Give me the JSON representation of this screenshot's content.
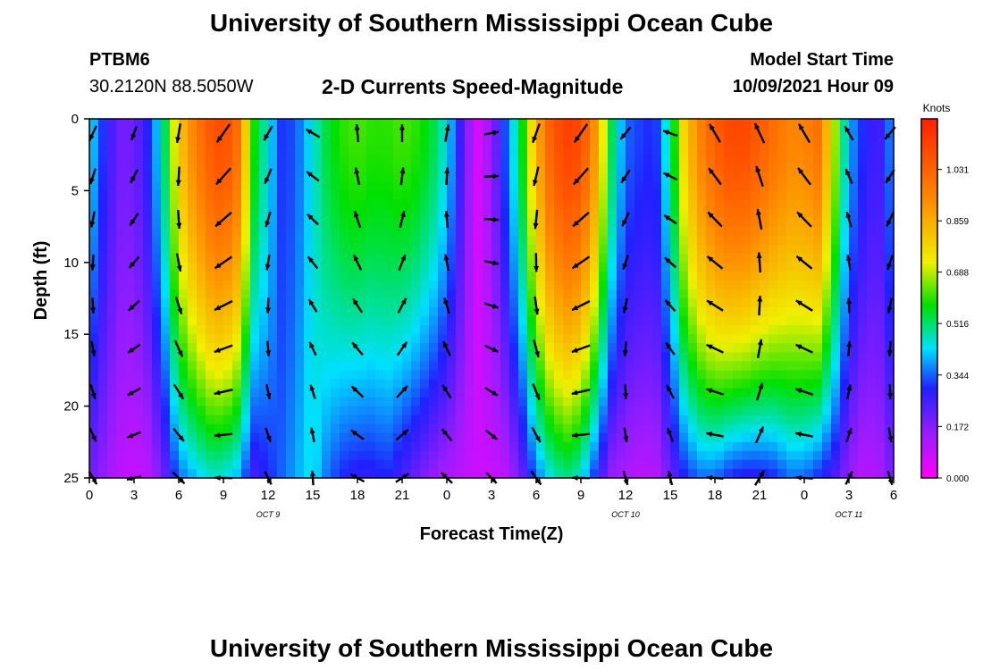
{
  "header": {
    "title": "University of Southern Mississippi Ocean Cube",
    "station_id": "PTBM6",
    "coordinates": "30.2120N  88.5050W",
    "subtitle": "2-D Currents Speed-Magnitude",
    "model_start_label": "Model Start Time",
    "model_start_value": "10/09/2021 Hour 09"
  },
  "footer": {
    "title": "University of Southern Mississippi Ocean Cube"
  },
  "chart_data": {
    "type": "heatmap",
    "title": "2-D Currents Speed-Magnitude",
    "xlabel": "Forecast Time(Z)",
    "ylabel": "Depth (ft)",
    "x_ticks": [
      "0",
      "3",
      "6",
      "9",
      "12",
      "15",
      "18",
      "21",
      "0",
      "3",
      "6",
      "9",
      "12",
      "15",
      "18",
      "21",
      "0",
      "3",
      "6"
    ],
    "x_range_hours": [
      0,
      54
    ],
    "date_labels": [
      {
        "text": "OCT 9",
        "hour": 12
      },
      {
        "text": "OCT 10",
        "hour": 36
      },
      {
        "text": "OCT 11",
        "hour": 51
      }
    ],
    "y_ticks": [
      "0",
      "5",
      "10",
      "15",
      "20",
      "25"
    ],
    "y_range_ft": [
      0,
      25
    ],
    "colorbar": {
      "unit": "Knots",
      "min": 0,
      "max": 1.2,
      "ticks": [
        "0.000",
        "0.172",
        "0.344",
        "0.516",
        "0.688",
        "0.859",
        "1.031"
      ]
    },
    "colors": {
      "magenta": "#ff00ff",
      "purple": "#9c1cff",
      "blue": "#2020ff",
      "cyan": "#00e0ff",
      "green": "#00e000",
      "yellow": "#f0f000",
      "orange": "#ff8800",
      "red": "#ff2000"
    },
    "speed_profile": {
      "hours": [
        0,
        1,
        2,
        3,
        4,
        5,
        6,
        7,
        8,
        9,
        10,
        11,
        12,
        13,
        14,
        15,
        16,
        17,
        18,
        19,
        20,
        21,
        22,
        23,
        24,
        25,
        26,
        27,
        28,
        29,
        30,
        31,
        32,
        33,
        34,
        35,
        36,
        37,
        38,
        39,
        40,
        41,
        42,
        43,
        44,
        45,
        46,
        47,
        48,
        49,
        50,
        51,
        52,
        53,
        54
      ],
      "surface_knots": [
        0.45,
        0.3,
        0.2,
        0.2,
        0.3,
        0.5,
        0.8,
        0.95,
        1.05,
        1.1,
        1.0,
        0.6,
        0.45,
        0.3,
        0.35,
        0.45,
        0.55,
        0.6,
        0.62,
        0.6,
        0.6,
        0.62,
        0.6,
        0.55,
        0.45,
        0.25,
        0.05,
        0.15,
        0.35,
        0.55,
        0.85,
        1.05,
        1.12,
        1.1,
        0.9,
        0.55,
        0.35,
        0.32,
        0.3,
        0.5,
        0.8,
        0.95,
        1.05,
        1.1,
        1.1,
        1.05,
        1.0,
        0.95,
        0.95,
        1.0,
        0.7,
        0.4,
        0.3,
        0.25,
        0.4
      ],
      "bottom_knots": [
        0.2,
        0.15,
        0.1,
        0.08,
        0.1,
        0.2,
        0.35,
        0.4,
        0.45,
        0.45,
        0.4,
        0.25,
        0.3,
        0.35,
        0.4,
        0.45,
        0.35,
        0.3,
        0.28,
        0.28,
        0.3,
        0.25,
        0.2,
        0.15,
        0.12,
        0.1,
        0.08,
        0.08,
        0.1,
        0.2,
        0.35,
        0.45,
        0.5,
        0.45,
        0.3,
        0.15,
        0.12,
        0.1,
        0.1,
        0.2,
        0.3,
        0.35,
        0.35,
        0.3,
        0.28,
        0.28,
        0.3,
        0.35,
        0.35,
        0.3,
        0.25,
        0.15,
        0.1,
        0.12,
        0.2
      ]
    },
    "vectors": {
      "hours": [
        0,
        3,
        6,
        9,
        12,
        15,
        18,
        21,
        24,
        27,
        30,
        33,
        36,
        39,
        42,
        45,
        48,
        51,
        54
      ],
      "depths": [
        1,
        4,
        7,
        10,
        13,
        16,
        19,
        22,
        25
      ],
      "directions_deg": [
        205,
        200,
        190,
        215,
        210,
        300,
        355,
        0,
        10,
        80,
        200,
        215,
        220,
        290,
        330,
        335,
        330,
        330,
        220
      ],
      "speeds_knots": [
        0.45,
        0.2,
        0.8,
        1.1,
        0.45,
        0.35,
        0.6,
        0.6,
        0.55,
        0.1,
        0.85,
        1.1,
        0.35,
        0.3,
        0.95,
        1.05,
        1.0,
        0.4,
        0.4
      ]
    }
  }
}
